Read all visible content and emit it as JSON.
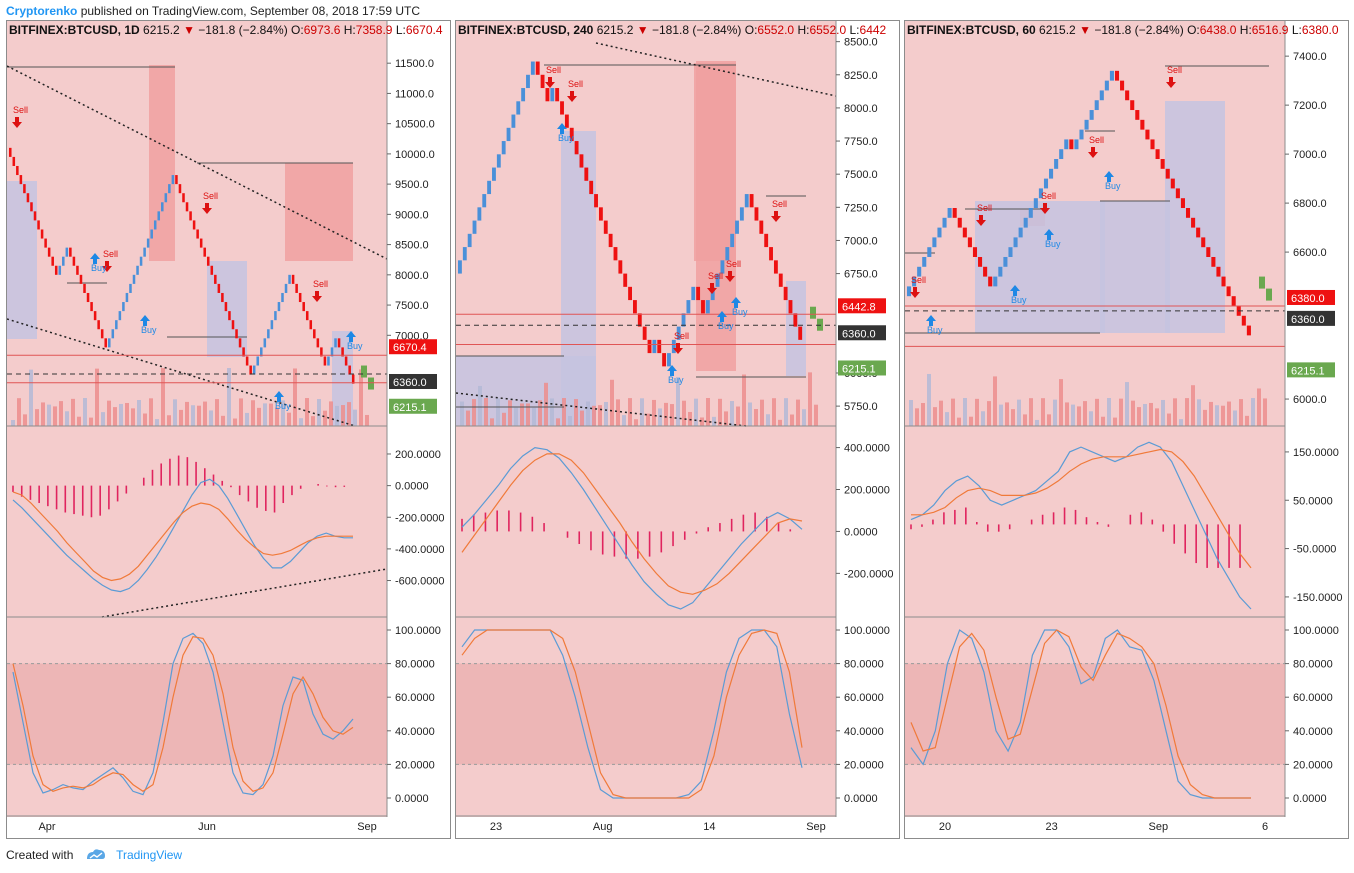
{
  "header": {
    "author": "Cryptorenko",
    "text": "published on TradingView.com, September 08, 2018 17:59 UTC"
  },
  "footer": {
    "created_with": "Created with",
    "brand": "TradingView"
  },
  "colors": {
    "bg": "#f4cccc",
    "up": "#4a90d9",
    "down": "#ee1111",
    "sell": "#dd1111",
    "buy": "#1e88e5",
    "macd_fast": "#5b9bd5",
    "macd_slow": "#f07a3a",
    "hist": "#e0245e",
    "zone_red": "#f0a0a0",
    "zone_blue": "#c4c3e0",
    "last_green": "#6aa84f"
  },
  "chart_data": [
    {
      "type": "renko",
      "symbol": "BITFINEX:BTCUSD, 1D",
      "last": "6215.2",
      "change": "−181.8 (−2.84%)",
      "o": "6973.6",
      "h": "7358.9",
      "l": "6670.4",
      "ylim": [
        5500,
        11900
      ],
      "y_ticks": [
        "11500.0",
        "11000.0",
        "10500.0",
        "10000.0",
        "9500.0",
        "9000.0",
        "8500.0",
        "8000.0",
        "7500.0",
        "7000.0"
      ],
      "x_ticks": [
        "Apr",
        "Jun",
        "Sep"
      ],
      "price_tags": [
        {
          "label": "6670.4",
          "value": 6670.4,
          "color": "#ee1111"
        },
        {
          "label": "6360.0",
          "value": 6360,
          "color": "#333333"
        },
        {
          "label": "6215.1",
          "value": 6215.1,
          "color": "#6aa84f"
        }
      ],
      "macd_ticks": [
        "200.0000",
        "0.0000",
        "-200.0000",
        "-400.0000",
        "-600.0000"
      ],
      "macd_ylim": [
        -780,
        320
      ],
      "stoch_ticks": [
        "100.0000",
        "80.0000",
        "60.0000",
        "40.0000",
        "20.0000",
        "0.0000"
      ],
      "signals": [
        {
          "label": "Sell"
        },
        {
          "label": "Sell"
        },
        {
          "label": "Buy"
        },
        {
          "label": "Buy"
        },
        {
          "label": "Sell"
        },
        {
          "label": "Buy"
        },
        {
          "label": "Sell"
        },
        {
          "label": "Buy"
        }
      ],
      "renko_path": [
        10100,
        9950,
        9800,
        9650,
        9500,
        9350,
        9200,
        9050,
        8900,
        8750,
        8600,
        8450,
        8300,
        8150,
        8000,
        8150,
        8300,
        8450,
        8300,
        8150,
        8000,
        7850,
        7700,
        7550,
        7400,
        7250,
        7100,
        6950,
        6800,
        6950,
        7100,
        7250,
        7400,
        7550,
        7700,
        7850,
        8000,
        8150,
        8300,
        8450,
        8600,
        8750,
        8900,
        9050,
        9200,
        9350,
        9500,
        9650,
        9500,
        9350,
        9200,
        9050,
        8900,
        8750,
        8600,
        8450,
        8300,
        8150,
        8000,
        7850,
        7700,
        7550,
        7400,
        7250,
        7100,
        6950,
        6800,
        6650,
        6500,
        6350,
        6500,
        6650,
        6800,
        6950,
        7100,
        7250,
        7400,
        7550,
        7700,
        7850,
        8000,
        7850,
        7700,
        7550,
        7400,
        7250,
        7100,
        6950,
        6800,
        6650,
        6500,
        6650,
        6800,
        6950,
        6800,
        6650,
        6500,
        6350,
        6200
      ],
      "macd": [
        -90,
        -140,
        -200,
        -260,
        -320,
        -380,
        -440,
        -490,
        -540,
        -590,
        -630,
        -660,
        -670,
        -650,
        -600,
        -530,
        -450,
        -360,
        -260,
        -160,
        -60,
        20,
        40,
        0,
        -80,
        -180,
        -280,
        -380,
        -460,
        -520,
        -520,
        -480,
        -420,
        -360,
        -320,
        -300,
        -320,
        -330,
        -330
      ],
      "signal": [
        -40,
        -60,
        -110,
        -170,
        -230,
        -290,
        -360,
        -420,
        -480,
        -540,
        -580,
        -600,
        -590,
        -560,
        -510,
        -440,
        -370,
        -300,
        -230,
        -170,
        -130,
        -110,
        -120,
        -150,
        -210,
        -280,
        -340,
        -390,
        -430,
        -440,
        -430,
        -410,
        -380,
        -350,
        -330,
        -320,
        -320,
        -320,
        -320
      ],
      "hist": [
        -40,
        -70,
        -90,
        -110,
        -130,
        -150,
        -170,
        -180,
        -190,
        -200,
        -190,
        -150,
        -100,
        -50,
        0,
        50,
        100,
        140,
        170,
        190,
        180,
        150,
        110,
        70,
        30,
        -10,
        -60,
        -100,
        -140,
        -160,
        -170,
        -110,
        -60,
        -20,
        0,
        10,
        -5,
        -10,
        -8
      ],
      "stoch_k": [
        75,
        45,
        15,
        3,
        5,
        8,
        6,
        5,
        10,
        14,
        18,
        12,
        4,
        2,
        15,
        45,
        80,
        95,
        98,
        92,
        75,
        45,
        15,
        3,
        2,
        8,
        25,
        55,
        72,
        70,
        50,
        38,
        35,
        40,
        47
      ],
      "stoch_d": [
        80,
        55,
        25,
        8,
        4,
        6,
        7,
        6,
        8,
        12,
        15,
        14,
        8,
        4,
        8,
        30,
        60,
        85,
        96,
        95,
        85,
        62,
        30,
        10,
        4,
        6,
        15,
        38,
        62,
        72,
        62,
        48,
        40,
        38,
        42
      ]
    },
    {
      "type": "renko",
      "symbol": "BITFINEX:BTCUSD, 240",
      "last": "6215.2",
      "change": "−181.8 (−2.84%)",
      "o": "6552.0",
      "h": "6552.0",
      "l": "6442",
      "ylim": [
        5600,
        8520
      ],
      "y_ticks": [
        "8500.0",
        "8250.0",
        "8000.0",
        "7750.0",
        "7500.0",
        "7250.0",
        "7000.0",
        "6750.0",
        "6000.0",
        "5750.0"
      ],
      "x_ticks": [
        "23",
        "Aug",
        "14",
        "Sep"
      ],
      "price_tags": [
        {
          "label": "6442.8",
          "value": 6442.8,
          "color": "#ee1111"
        },
        {
          "label": "6360.0",
          "value": 6360,
          "color": "#333333"
        },
        {
          "label": "6215.1",
          "value": 6215.1,
          "color": "#6aa84f"
        }
      ],
      "macd_ticks": [
        "400.0000",
        "200.0000",
        "0.0000",
        "-200.0000"
      ],
      "macd_ylim": [
        -370,
        460
      ],
      "stoch_ticks": [
        "100.0000",
        "80.0000",
        "60.0000",
        "40.0000",
        "20.0000",
        "0.0000"
      ],
      "signals": [
        {
          "label": "Sell"
        },
        {
          "label": "Sell"
        },
        {
          "label": "Buy"
        },
        {
          "label": "Sell"
        },
        {
          "label": "Buy"
        },
        {
          "label": "Sell"
        },
        {
          "label": "Buy"
        },
        {
          "label": "Sell"
        },
        {
          "label": "Buy"
        },
        {
          "label": "Sell"
        }
      ],
      "renko_path": [
        6750,
        6850,
        6950,
        7050,
        7150,
        7250,
        7350,
        7450,
        7550,
        7650,
        7750,
        7850,
        7950,
        8050,
        8150,
        8250,
        8350,
        8250,
        8150,
        8050,
        8150,
        8050,
        7950,
        7850,
        7750,
        7650,
        7550,
        7450,
        7350,
        7250,
        7150,
        7050,
        6950,
        6850,
        6750,
        6650,
        6550,
        6450,
        6350,
        6250,
        6150,
        6250,
        6150,
        6050,
        6150,
        6250,
        6350,
        6450,
        6550,
        6650,
        6550,
        6450,
        6550,
        6650,
        6750,
        6850,
        6950,
        7050,
        7150,
        7250,
        7350,
        7250,
        7150,
        7050,
        6950,
        6850,
        6750,
        6650,
        6550,
        6450,
        6350,
        6250
      ],
      "macd": [
        20,
        80,
        150,
        220,
        300,
        360,
        400,
        390,
        350,
        280,
        200,
        110,
        20,
        -70,
        -160,
        -240,
        -300,
        -350,
        -370,
        -340,
        -270,
        -200,
        -130,
        -60,
        0,
        60,
        90,
        60,
        10
      ],
      "signal": [
        -100,
        -20,
        60,
        140,
        220,
        290,
        340,
        370,
        370,
        340,
        280,
        200,
        120,
        40,
        -50,
        -130,
        -200,
        -260,
        -290,
        -300,
        -280,
        -250,
        -200,
        -140,
        -80,
        -20,
        40,
        60,
        50
      ],
      "hist": [
        60,
        80,
        90,
        100,
        100,
        90,
        70,
        40,
        0,
        -30,
        -60,
        -90,
        -110,
        -120,
        -130,
        -130,
        -120,
        -100,
        -70,
        -40,
        -10,
        20,
        40,
        60,
        80,
        90,
        70,
        40,
        10
      ],
      "stoch_k": [
        90,
        100,
        100,
        100,
        100,
        100,
        100,
        100,
        85,
        60,
        30,
        5,
        0,
        0,
        0,
        0,
        0,
        0,
        2,
        10,
        40,
        75,
        95,
        100,
        100,
        90,
        50,
        18
      ],
      "stoch_d": [
        85,
        95,
        100,
        100,
        100,
        100,
        100,
        100,
        95,
        75,
        45,
        15,
        2,
        0,
        0,
        0,
        0,
        0,
        0,
        5,
        25,
        60,
        85,
        98,
        100,
        98,
        75,
        30
      ]
    },
    {
      "type": "renko",
      "symbol": "BITFINEX:BTCUSD, 60",
      "last": "6215.2",
      "change": "−181.8 (−2.84%)",
      "o": "6438.0",
      "h": "6516.9",
      "l": "6380.0",
      "ylim": [
        5890,
        7470
      ],
      "y_ticks": [
        "7400.0",
        "7200.0",
        "7000.0",
        "6800.0",
        "6600.0",
        "6000.0"
      ],
      "x_ticks": [
        "20",
        "23",
        "Sep",
        "6"
      ],
      "price_tags": [
        {
          "label": "6380.0",
          "value": 6380,
          "color": "#ee1111"
        },
        {
          "label": "6360.0",
          "value": 6360,
          "color": "#333333"
        },
        {
          "label": "6215.1",
          "value": 6215.1,
          "color": "#6aa84f"
        }
      ],
      "macd_ticks": [
        "150.0000",
        "50.0000",
        "-50.0000",
        "-150.0000"
      ],
      "macd_ylim": [
        -175,
        185
      ],
      "stoch_ticks": [
        "100.0000",
        "80.0000",
        "60.0000",
        "40.0000",
        "20.0000",
        "0.0000"
      ],
      "signals": [
        {
          "label": "Sell"
        },
        {
          "label": "Buy"
        },
        {
          "label": "Sell"
        },
        {
          "label": "Buy"
        },
        {
          "label": "Sell"
        },
        {
          "label": "Buy"
        },
        {
          "label": "Sell"
        },
        {
          "label": "Buy"
        },
        {
          "label": "Sell"
        }
      ],
      "renko_path": [
        6420,
        6460,
        6500,
        6540,
        6580,
        6620,
        6660,
        6700,
        6740,
        6780,
        6740,
        6700,
        6660,
        6620,
        6580,
        6540,
        6500,
        6460,
        6500,
        6540,
        6580,
        6620,
        6660,
        6700,
        6740,
        6780,
        6820,
        6860,
        6900,
        6940,
        6980,
        7020,
        7060,
        7020,
        7060,
        7100,
        7140,
        7180,
        7220,
        7260,
        7300,
        7340,
        7300,
        7260,
        7220,
        7180,
        7140,
        7100,
        7060,
        7020,
        6980,
        6940,
        6900,
        6860,
        6820,
        6780,
        6740,
        6700,
        6660,
        6620,
        6580,
        6540,
        6500,
        6460,
        6420,
        6380,
        6340,
        6300,
        6260
      ],
      "macd": [
        10,
        20,
        40,
        70,
        90,
        100,
        80,
        50,
        40,
        50,
        60,
        70,
        90,
        110,
        150,
        160,
        150,
        140,
        130,
        140,
        160,
        170,
        160,
        130,
        80,
        30,
        -20,
        -70,
        -110,
        -150,
        -175
      ],
      "signal": [
        20,
        20,
        25,
        35,
        55,
        70,
        75,
        70,
        60,
        60,
        60,
        65,
        75,
        90,
        110,
        125,
        135,
        140,
        140,
        140,
        145,
        150,
        155,
        150,
        130,
        100,
        60,
        20,
        -20,
        -60,
        -90
      ],
      "hist": [
        -10,
        -5,
        10,
        25,
        30,
        35,
        5,
        -15,
        -15,
        -10,
        0,
        10,
        20,
        25,
        35,
        30,
        15,
        5,
        -5,
        0,
        20,
        25,
        10,
        -15,
        -40,
        -60,
        -80,
        -90,
        -90,
        -90,
        -90
      ],
      "stoch_k": [
        30,
        20,
        40,
        80,
        100,
        95,
        75,
        40,
        28,
        45,
        85,
        100,
        100,
        90,
        68,
        72,
        95,
        100,
        90,
        88,
        70,
        40,
        10,
        2,
        0,
        0,
        0,
        0,
        0
      ],
      "stoch_d": [
        45,
        28,
        30,
        60,
        90,
        98,
        88,
        60,
        35,
        38,
        65,
        92,
        100,
        96,
        78,
        70,
        85,
        98,
        95,
        90,
        80,
        55,
        25,
        8,
        2,
        0,
        0,
        0,
        0
      ]
    }
  ]
}
